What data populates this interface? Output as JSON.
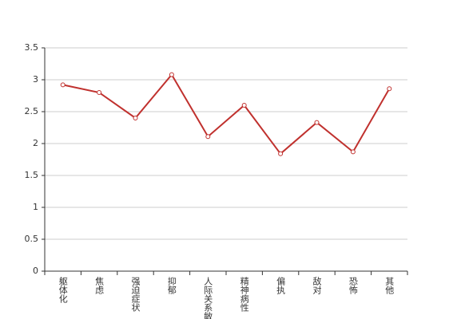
{
  "chart_data": {
    "type": "line",
    "categories": [
      "躯体化",
      "焦虑",
      "强迫症状",
      "抑郁",
      "人际关系敏感",
      "精神病性",
      "偏执",
      "敌对",
      "恐怖",
      "其他"
    ],
    "series": [
      {
        "color": "#c0312e",
        "values": [
          2.92,
          2.8,
          2.4,
          3.08,
          2.11,
          2.6,
          1.84,
          2.33,
          1.87,
          2.86
        ]
      }
    ],
    "ylim": [
      0,
      3.5
    ],
    "yticks": [
      0,
      0.5,
      1,
      1.5,
      2,
      2.5,
      3,
      3.5
    ],
    "grid": true
  }
}
